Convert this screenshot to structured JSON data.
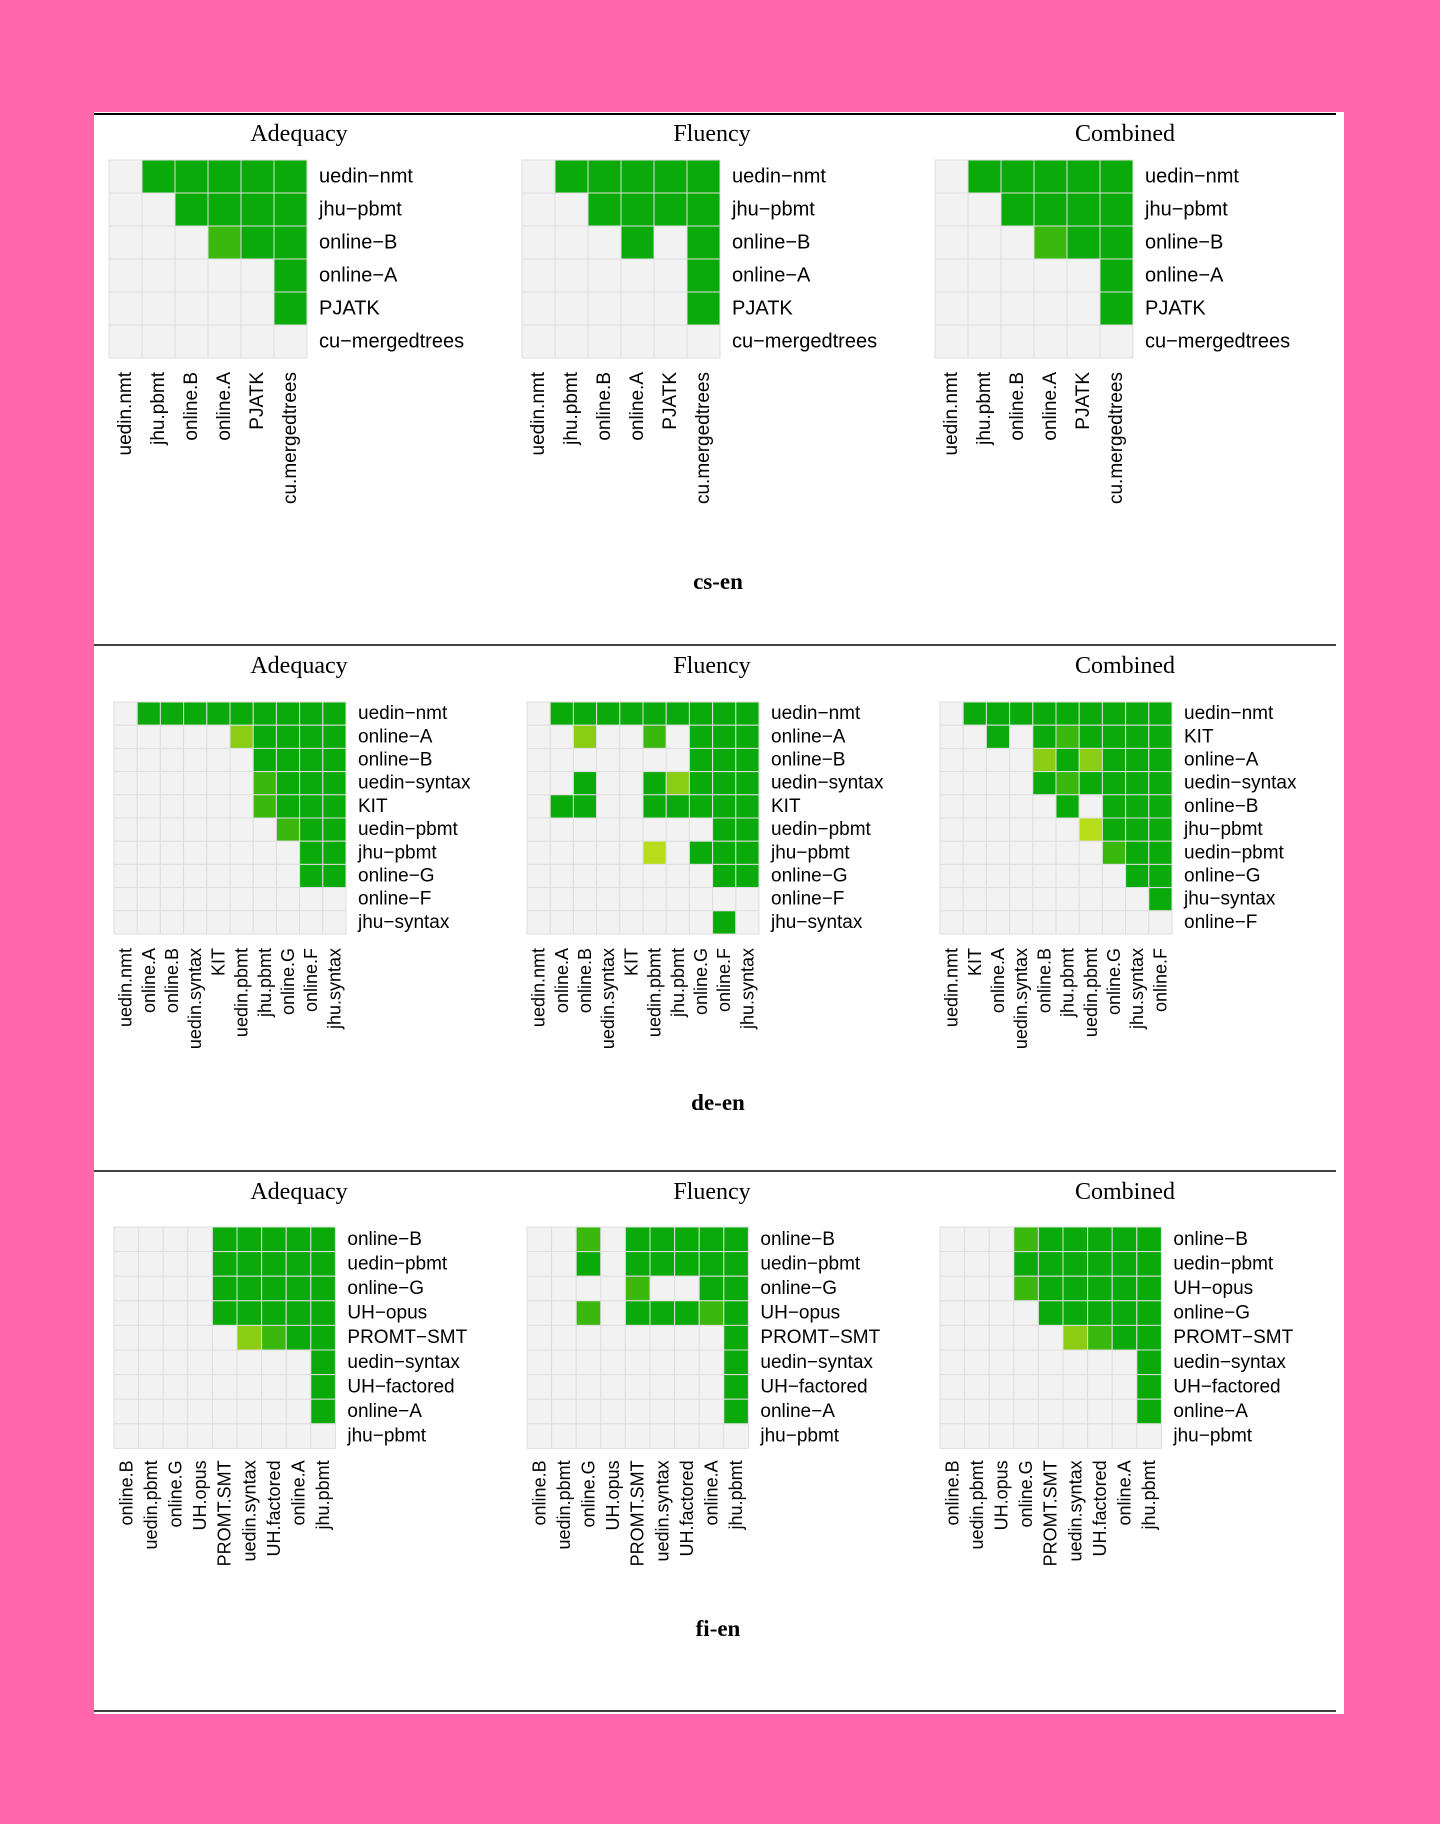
{
  "colors": {
    "background": "#ff66ac",
    "page": "#ffffff",
    "cell_empty": "#f2f2f2",
    "cell_grid": "#dedede",
    "sig_high": "#0aaa0a",
    "sig_mid": "#3bb80e",
    "sig_low": "#8acd12",
    "sig_weak": "#b7dd1a",
    "rule": "#000000"
  },
  "chart_data": [
    {
      "type": "heatmap",
      "section": "cs-en",
      "panels": [
        {
          "title": "Adequacy",
          "row_labels": [
            "uedin−nmt",
            "jhu−pbmt",
            "online−B",
            "online−A",
            "PJATK",
            "cu−mergedtrees"
          ],
          "col_labels": [
            "uedin.nmt",
            "jhu.pbmt",
            "online.B",
            "online.A",
            "PJATK",
            "cu.mergedtrees"
          ],
          "cells": [
            [
              0,
              3,
              3,
              3,
              3,
              3
            ],
            [
              0,
              0,
              3,
              3,
              3,
              3
            ],
            [
              0,
              0,
              0,
              2,
              3,
              3
            ],
            [
              0,
              0,
              0,
              0,
              0,
              3
            ],
            [
              0,
              0,
              0,
              0,
              0,
              3
            ],
            [
              0,
              0,
              0,
              0,
              0,
              0
            ]
          ]
        },
        {
          "title": "Fluency",
          "row_labels": [
            "uedin−nmt",
            "jhu−pbmt",
            "online−B",
            "online−A",
            "PJATK",
            "cu−mergedtrees"
          ],
          "col_labels": [
            "uedin.nmt",
            "jhu.pbmt",
            "online.B",
            "online.A",
            "PJATK",
            "cu.mergedtrees"
          ],
          "cells": [
            [
              0,
              3,
              3,
              3,
              3,
              3
            ],
            [
              0,
              0,
              3,
              3,
              3,
              3
            ],
            [
              0,
              0,
              0,
              3,
              0,
              3
            ],
            [
              0,
              0,
              0,
              0,
              0,
              3
            ],
            [
              0,
              0,
              0,
              0,
              0,
              3
            ],
            [
              0,
              0,
              0,
              0,
              0,
              0
            ]
          ]
        },
        {
          "title": "Combined",
          "row_labels": [
            "uedin−nmt",
            "jhu−pbmt",
            "online−B",
            "online−A",
            "PJATK",
            "cu−mergedtrees"
          ],
          "col_labels": [
            "uedin.nmt",
            "jhu.pbmt",
            "online.B",
            "online.A",
            "PJATK",
            "cu.mergedtrees"
          ],
          "cells": [
            [
              0,
              3,
              3,
              3,
              3,
              3
            ],
            [
              0,
              0,
              3,
              3,
              3,
              3
            ],
            [
              0,
              0,
              0,
              2,
              3,
              3
            ],
            [
              0,
              0,
              0,
              0,
              0,
              3
            ],
            [
              0,
              0,
              0,
              0,
              0,
              3
            ],
            [
              0,
              0,
              0,
              0,
              0,
              0
            ]
          ]
        }
      ]
    },
    {
      "type": "heatmap",
      "section": "de-en",
      "panels": [
        {
          "title": "Adequacy",
          "row_labels": [
            "uedin−nmt",
            "online−A",
            "online−B",
            "uedin−syntax",
            "KIT",
            "uedin−pbmt",
            "jhu−pbmt",
            "online−G",
            "online−F",
            "jhu−syntax"
          ],
          "col_labels": [
            "uedin.nmt",
            "online.A",
            "online.B",
            "uedin.syntax",
            "KIT",
            "uedin.pbmt",
            "jhu.pbmt",
            "online.G",
            "online.F",
            "jhu.syntax"
          ],
          "cells": [
            [
              0,
              3,
              3,
              3,
              3,
              3,
              3,
              3,
              3,
              3
            ],
            [
              0,
              0,
              0,
              0,
              0,
              1,
              3,
              3,
              3,
              3
            ],
            [
              0,
              0,
              0,
              0,
              0,
              0,
              3,
              3,
              3,
              3
            ],
            [
              0,
              0,
              0,
              0,
              0,
              0,
              2,
              3,
              3,
              3
            ],
            [
              0,
              0,
              0,
              0,
              0,
              0,
              2,
              3,
              3,
              3
            ],
            [
              0,
              0,
              0,
              0,
              0,
              0,
              0,
              2,
              3,
              3
            ],
            [
              0,
              0,
              0,
              0,
              0,
              0,
              0,
              0,
              3,
              3
            ],
            [
              0,
              0,
              0,
              0,
              0,
              0,
              0,
              0,
              3,
              3
            ],
            [
              0,
              0,
              0,
              0,
              0,
              0,
              0,
              0,
              0,
              0
            ],
            [
              0,
              0,
              0,
              0,
              0,
              0,
              0,
              0,
              0,
              0
            ]
          ]
        },
        {
          "title": "Fluency",
          "row_labels": [
            "uedin−nmt",
            "online−A",
            "online−B",
            "uedin−syntax",
            "KIT",
            "uedin−pbmt",
            "jhu−pbmt",
            "online−G",
            "online−F",
            "jhu−syntax"
          ],
          "col_labels": [
            "uedin.nmt",
            "online.A",
            "online.B",
            "uedin.syntax",
            "KIT",
            "uedin.pbmt",
            "jhu.pbmt",
            "online.G",
            "online.F",
            "jhu.syntax"
          ],
          "cells": [
            [
              0,
              3,
              3,
              3,
              3,
              3,
              3,
              3,
              3,
              3
            ],
            [
              0,
              0,
              1,
              0,
              0,
              2,
              0,
              3,
              3,
              3
            ],
            [
              0,
              0,
              0,
              0,
              0,
              0,
              0,
              3,
              3,
              3
            ],
            [
              0,
              0,
              3,
              0,
              0,
              3,
              1,
              3,
              3,
              3
            ],
            [
              0,
              3,
              3,
              0,
              0,
              3,
              3,
              3,
              3,
              3
            ],
            [
              0,
              0,
              0,
              0,
              0,
              0,
              0,
              0,
              3,
              3
            ],
            [
              0,
              0,
              0,
              0,
              0,
              4,
              0,
              3,
              3,
              3
            ],
            [
              0,
              0,
              0,
              0,
              0,
              0,
              0,
              0,
              3,
              3
            ],
            [
              0,
              0,
              0,
              0,
              0,
              0,
              0,
              0,
              0,
              0
            ],
            [
              0,
              0,
              0,
              0,
              0,
              0,
              0,
              0,
              3,
              0
            ]
          ]
        },
        {
          "title": "Combined",
          "row_labels": [
            "uedin−nmt",
            "KIT",
            "online−A",
            "uedin−syntax",
            "online−B",
            "jhu−pbmt",
            "uedin−pbmt",
            "online−G",
            "jhu−syntax",
            "online−F"
          ],
          "col_labels": [
            "uedin.nmt",
            "KIT",
            "online.A",
            "uedin.syntax",
            "online.B",
            "jhu.pbmt",
            "uedin.pbmt",
            "online.G",
            "jhu.syntax",
            "online.F"
          ],
          "cells": [
            [
              0,
              3,
              3,
              3,
              3,
              3,
              3,
              3,
              3,
              3
            ],
            [
              0,
              0,
              3,
              0,
              3,
              2,
              3,
              3,
              3,
              3
            ],
            [
              0,
              0,
              0,
              0,
              1,
              3,
              1,
              3,
              3,
              3
            ],
            [
              0,
              0,
              0,
              0,
              3,
              2,
              3,
              3,
              3,
              3
            ],
            [
              0,
              0,
              0,
              0,
              0,
              3,
              0,
              3,
              3,
              3
            ],
            [
              0,
              0,
              0,
              0,
              0,
              0,
              4,
              3,
              3,
              3
            ],
            [
              0,
              0,
              0,
              0,
              0,
              0,
              0,
              2,
              3,
              3
            ],
            [
              0,
              0,
              0,
              0,
              0,
              0,
              0,
              0,
              3,
              3
            ],
            [
              0,
              0,
              0,
              0,
              0,
              0,
              0,
              0,
              0,
              3
            ],
            [
              0,
              0,
              0,
              0,
              0,
              0,
              0,
              0,
              0,
              0
            ]
          ]
        }
      ]
    },
    {
      "type": "heatmap",
      "section": "fi-en",
      "panels": [
        {
          "title": "Adequacy",
          "row_labels": [
            "online−B",
            "uedin−pbmt",
            "online−G",
            "UH−opus",
            "PROMT−SMT",
            "uedin−syntax",
            "UH−factored",
            "online−A",
            "jhu−pbmt"
          ],
          "col_labels": [
            "online.B",
            "uedin.pbmt",
            "online.G",
            "UH.opus",
            "PROMT.SMT",
            "uedin.syntax",
            "UH.factored",
            "online.A",
            "jhu.pbmt"
          ],
          "cells": [
            [
              0,
              0,
              0,
              0,
              3,
              3,
              3,
              3,
              3
            ],
            [
              0,
              0,
              0,
              0,
              3,
              3,
              3,
              3,
              3
            ],
            [
              0,
              0,
              0,
              0,
              3,
              3,
              3,
              3,
              3
            ],
            [
              0,
              0,
              0,
              0,
              3,
              3,
              3,
              3,
              3
            ],
            [
              0,
              0,
              0,
              0,
              0,
              1,
              2,
              3,
              3
            ],
            [
              0,
              0,
              0,
              0,
              0,
              0,
              0,
              0,
              3
            ],
            [
              0,
              0,
              0,
              0,
              0,
              0,
              0,
              0,
              3
            ],
            [
              0,
              0,
              0,
              0,
              0,
              0,
              0,
              0,
              3
            ],
            [
              0,
              0,
              0,
              0,
              0,
              0,
              0,
              0,
              0
            ]
          ]
        },
        {
          "title": "Fluency",
          "row_labels": [
            "online−B",
            "uedin−pbmt",
            "online−G",
            "UH−opus",
            "PROMT−SMT",
            "uedin−syntax",
            "UH−factored",
            "online−A",
            "jhu−pbmt"
          ],
          "col_labels": [
            "online.B",
            "uedin.pbmt",
            "online.G",
            "UH.opus",
            "PROMT.SMT",
            "uedin.syntax",
            "UH.factored",
            "online.A",
            "jhu.pbmt"
          ],
          "cells": [
            [
              0,
              0,
              2,
              0,
              3,
              3,
              3,
              3,
              3
            ],
            [
              0,
              0,
              3,
              0,
              3,
              3,
              3,
              3,
              3
            ],
            [
              0,
              0,
              0,
              0,
              2,
              0,
              0,
              3,
              3
            ],
            [
              0,
              0,
              2,
              0,
              3,
              3,
              3,
              2,
              3
            ],
            [
              0,
              0,
              0,
              0,
              0,
              0,
              0,
              0,
              3
            ],
            [
              0,
              0,
              0,
              0,
              0,
              0,
              0,
              0,
              3
            ],
            [
              0,
              0,
              0,
              0,
              0,
              0,
              0,
              0,
              3
            ],
            [
              0,
              0,
              0,
              0,
              0,
              0,
              0,
              0,
              3
            ],
            [
              0,
              0,
              0,
              0,
              0,
              0,
              0,
              0,
              0
            ]
          ]
        },
        {
          "title": "Combined",
          "row_labels": [
            "online−B",
            "uedin−pbmt",
            "UH−opus",
            "online−G",
            "PROMT−SMT",
            "uedin−syntax",
            "UH−factored",
            "online−A",
            "jhu−pbmt"
          ],
          "col_labels": [
            "online.B",
            "uedin.pbmt",
            "UH.opus",
            "online.G",
            "PROMT.SMT",
            "uedin.syntax",
            "UH.factored",
            "online.A",
            "jhu.pbmt"
          ],
          "cells": [
            [
              0,
              0,
              0,
              2,
              3,
              3,
              3,
              3,
              3
            ],
            [
              0,
              0,
              0,
              3,
              3,
              3,
              3,
              3,
              3
            ],
            [
              0,
              0,
              0,
              2,
              3,
              3,
              3,
              3,
              3
            ],
            [
              0,
              0,
              0,
              0,
              3,
              3,
              3,
              3,
              3
            ],
            [
              0,
              0,
              0,
              0,
              0,
              1,
              2,
              3,
              3
            ],
            [
              0,
              0,
              0,
              0,
              0,
              0,
              0,
              0,
              3
            ],
            [
              0,
              0,
              0,
              0,
              0,
              0,
              0,
              0,
              3
            ],
            [
              0,
              0,
              0,
              0,
              0,
              0,
              0,
              0,
              3
            ],
            [
              0,
              0,
              0,
              0,
              0,
              0,
              0,
              0,
              0
            ]
          ]
        }
      ]
    }
  ]
}
